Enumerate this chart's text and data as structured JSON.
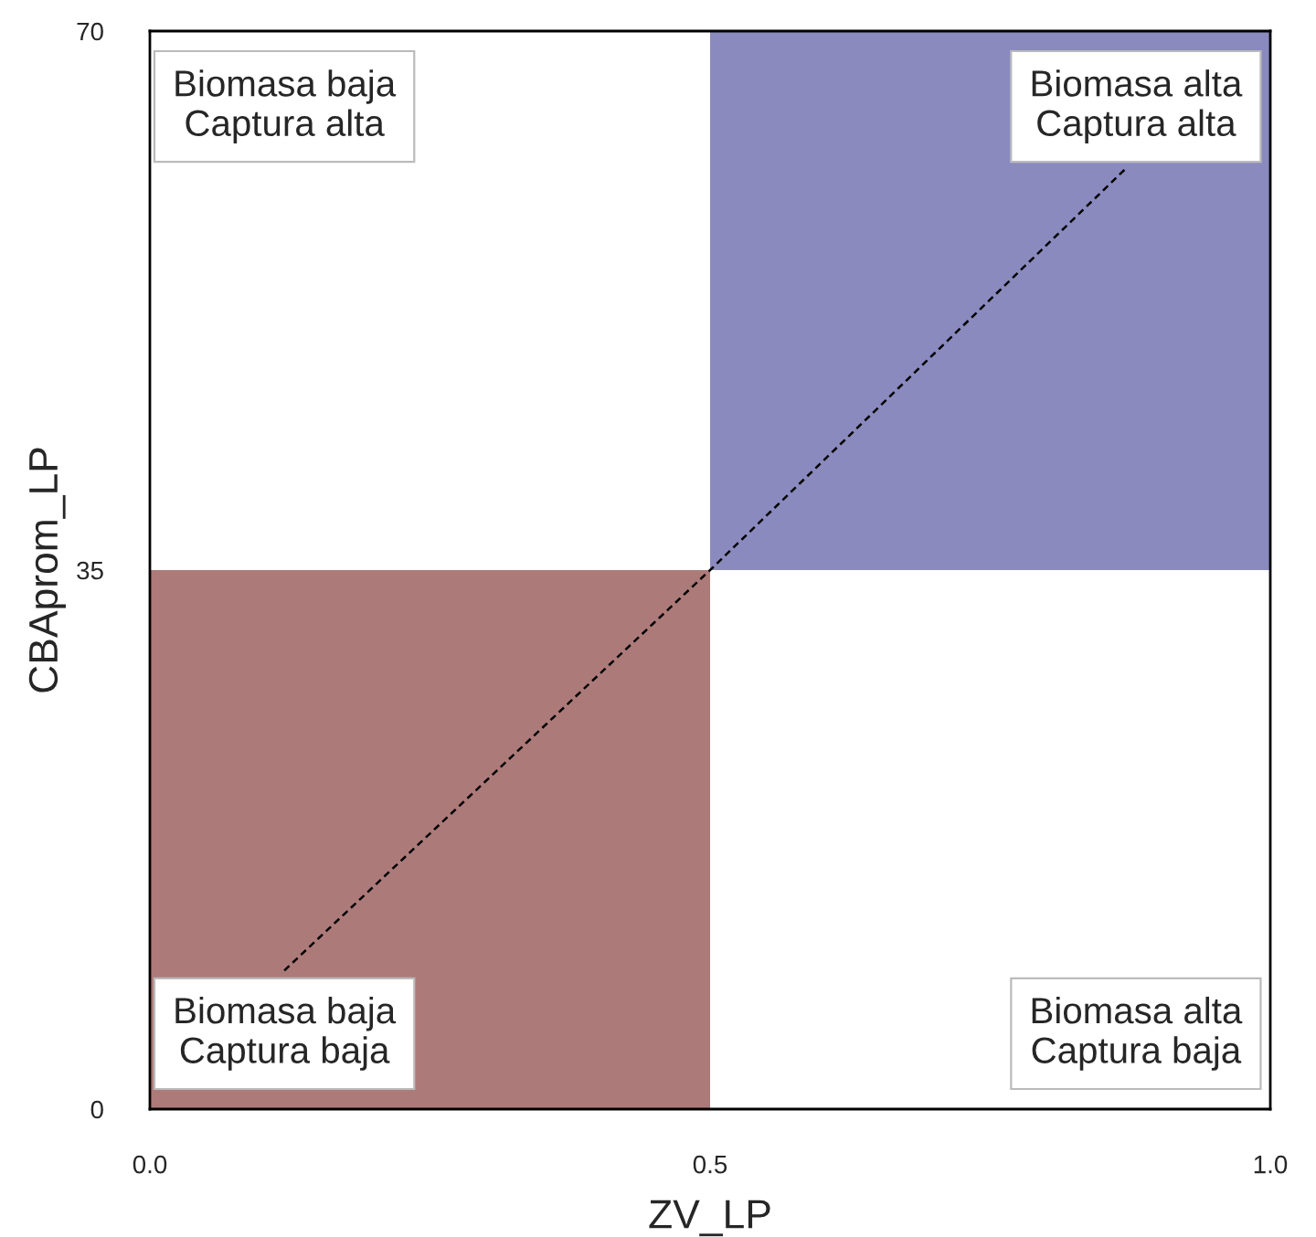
{
  "chart_data": {
    "type": "bar",
    "xlabel": "ZV_LP",
    "ylabel": "CBAprom_LP",
    "x": [
      0.25,
      0.75
    ],
    "base": [
      0,
      35
    ],
    "values": [
      35,
      35
    ],
    "colors": [
      "#ad7a7a",
      "#8a8abf"
    ],
    "series": [
      {
        "type": "line",
        "x": [
          0.12,
          0.5,
          0.87
        ],
        "values": [
          9,
          35,
          61
        ],
        "color": "#000000",
        "line_style": "dashed"
      }
    ],
    "xlim": [
      0,
      1
    ],
    "xticks": [
      {
        "value": 0,
        "label": "0.0"
      },
      0.5,
      {
        "value": 1,
        "label": "1.0"
      }
    ],
    "ylim": [
      0,
      70
    ],
    "yticks": [
      0,
      35,
      70
    ],
    "grid": false,
    "legend": false,
    "annotations": [
      "Biomasa baja\nCaptura alta",
      "Biomasa alta\nCaptura alta",
      "Biomasa baja\nCaptura baja",
      "Biomasa alta\nCaptura baja"
    ]
  }
}
